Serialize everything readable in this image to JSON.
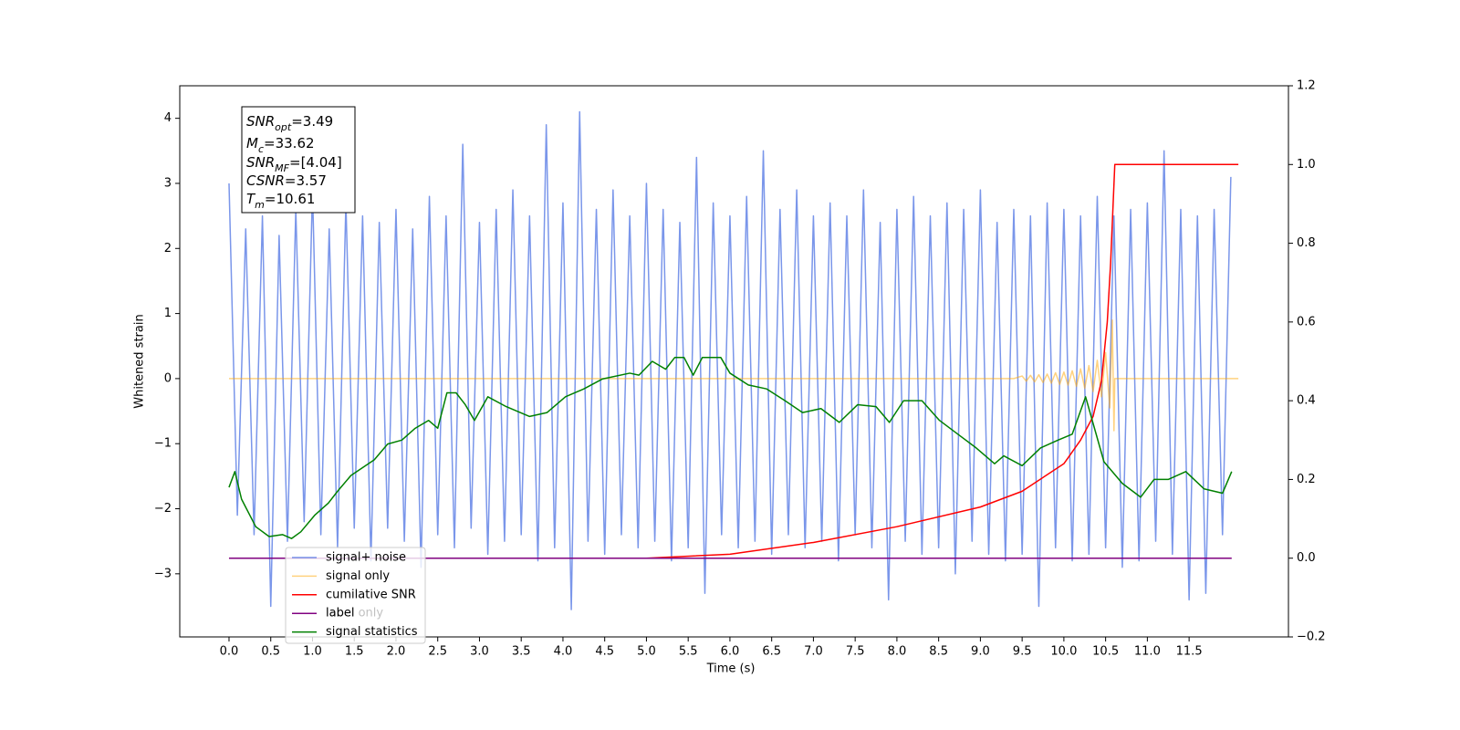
{
  "chart_data": {
    "type": "line",
    "xlabel": "Time (s)",
    "ylabel": "Whitened strain",
    "xlim": [
      -0.59,
      12.69
    ],
    "ylim": [
      -3.97,
      4.5
    ],
    "y2lim": [
      -0.2,
      1.2
    ],
    "xticks": [
      {
        "value": 0,
        "label": "0.0"
      },
      {
        "value": 0.5,
        "label": "0.5"
      },
      {
        "value": 1,
        "label": "1.0"
      },
      {
        "value": 1.5,
        "label": "1.5"
      },
      {
        "value": 2,
        "label": "2.0"
      },
      {
        "value": 2.5,
        "label": "2.5"
      },
      {
        "value": 3,
        "label": "3.0"
      },
      {
        "value": 3.5,
        "label": "3.5"
      },
      {
        "value": 4,
        "label": "4.0"
      },
      {
        "value": 4.5,
        "label": "4.5"
      },
      {
        "value": 5,
        "label": "5.0"
      },
      {
        "value": 5.5,
        "label": "5.5"
      },
      {
        "value": 6,
        "label": "6.0"
      },
      {
        "value": 6.5,
        "label": "6.5"
      },
      {
        "value": 7,
        "label": "7.0"
      },
      {
        "value": 7.5,
        "label": "7.5"
      },
      {
        "value": 8,
        "label": "8.0"
      },
      {
        "value": 8.5,
        "label": "8.5"
      },
      {
        "value": 9,
        "label": "9.0"
      },
      {
        "value": 9.5,
        "label": "9.5"
      },
      {
        "value": 10,
        "label": "10.0"
      },
      {
        "value": 10.5,
        "label": "10.5"
      },
      {
        "value": 11,
        "label": "11.0"
      },
      {
        "value": 11.5,
        "label": "11.5"
      }
    ],
    "yticks": [
      {
        "value": -3,
        "label": "−3"
      },
      {
        "value": -2,
        "label": "−2"
      },
      {
        "value": -1,
        "label": "−1"
      },
      0,
      1,
      2,
      3,
      4
    ],
    "y2ticks": [
      {
        "value": -0.2,
        "label": "−0.2"
      },
      {
        "value": 0,
        "label": "0.0"
      },
      0.2,
      0.4,
      0.6,
      0.8,
      {
        "value": 1,
        "label": "1.0"
      },
      1.2
    ],
    "legend": "lower left",
    "legend_ghost": "label only",
    "annotation": [
      {
        "symbol": "SNR",
        "sub": "opt",
        "text": "=3.49"
      },
      {
        "symbol": "M",
        "sub": "c",
        "text": "=33.62"
      },
      {
        "symbol": "SNR",
        "sub": "MF",
        "text": "=[4.04]"
      },
      {
        "symbol": "CSNR",
        "text": "=3.57"
      },
      {
        "symbol": "T",
        "sub": "m",
        "text": "=10.61"
      }
    ],
    "series": [
      {
        "name": "signal+ noise",
        "color": "#4169e1",
        "alpha": 0.7,
        "x": [
          0,
          0.1,
          0.2,
          0.3,
          0.4,
          0.5,
          0.6,
          0.7,
          0.8,
          0.9,
          1,
          1.1,
          1.2,
          1.3,
          1.4,
          1.5,
          1.6,
          1.7,
          1.8,
          1.9,
          2,
          2.1,
          2.2,
          2.3,
          2.4,
          2.5,
          2.6,
          2.7,
          2.8,
          2.9,
          3,
          3.1,
          3.2,
          3.3,
          3.4,
          3.5,
          3.6,
          3.7,
          3.8,
          3.9,
          4,
          4.1,
          4.2,
          4.3,
          4.4,
          4.5,
          4.6,
          4.7,
          4.8,
          4.9,
          5,
          5.1,
          5.2,
          5.3,
          5.4,
          5.5,
          5.6,
          5.7,
          5.8,
          5.9,
          6,
          6.1,
          6.2,
          6.3,
          6.4,
          6.5,
          6.6,
          6.7,
          6.8,
          6.9,
          7,
          7.1,
          7.2,
          7.3,
          7.4,
          7.5,
          7.6,
          7.7,
          7.8,
          7.9,
          8,
          8.1,
          8.2,
          8.3,
          8.4,
          8.5,
          8.6,
          8.7,
          8.8,
          8.9,
          9,
          9.1,
          9.2,
          9.3,
          9.4,
          9.5,
          9.6,
          9.7,
          9.8,
          9.9,
          10,
          10.1,
          10.2,
          10.3,
          10.4,
          10.5,
          10.6,
          10.7,
          10.8,
          10.9,
          11,
          11.1,
          11.2,
          11.3,
          11.4,
          11.5,
          11.6,
          11.7,
          11.8,
          11.9,
          12
        ],
        "values": [
          3.0,
          -2.1,
          2.3,
          -2.4,
          2.5,
          -3.5,
          2.2,
          -2.5,
          2.6,
          -2.2,
          2.9,
          -2.4,
          2.3,
          -2.6,
          2.7,
          -2.3,
          2.5,
          -2.8,
          2.4,
          -2.3,
          2.6,
          -2.5,
          2.3,
          -2.9,
          2.8,
          -2.4,
          2.5,
          -2.6,
          3.6,
          -2.3,
          2.4,
          -2.7,
          2.6,
          -2.5,
          2.9,
          -2.4,
          2.5,
          -2.8,
          3.9,
          -2.6,
          2.7,
          -3.55,
          4.1,
          -2.5,
          2.6,
          -2.7,
          2.9,
          -2.4,
          2.5,
          -2.6,
          3.0,
          -2.5,
          2.6,
          -2.8,
          2.4,
          -2.6,
          3.4,
          -3.3,
          2.7,
          -2.4,
          2.5,
          -2.6,
          2.8,
          -2.5,
          3.5,
          -2.7,
          2.6,
          -2.4,
          2.9,
          -2.6,
          2.5,
          -2.5,
          2.7,
          -2.8,
          2.5,
          -2.4,
          2.9,
          -2.6,
          2.4,
          -3.4,
          2.6,
          -2.5,
          2.8,
          -2.7,
          2.5,
          -2.6,
          2.7,
          -3.0,
          2.6,
          -2.5,
          2.9,
          -2.7,
          2.4,
          -2.8,
          2.6,
          -2.7,
          2.5,
          -3.5,
          2.7,
          -2.6,
          2.6,
          -2.8,
          2.5,
          -2.7,
          2.8,
          -2.6,
          2.5,
          -2.9,
          2.6,
          -2.8,
          2.7,
          -2.5,
          3.5,
          -2.7,
          2.6,
          -3.4,
          2.5,
          -3.3,
          2.6,
          -2.4,
          3.1
        ]
      },
      {
        "name": "signal only",
        "color": "#ffa500",
        "alpha": 0.5,
        "x": [
          0,
          9.4,
          9.5,
          9.55,
          9.6,
          9.65,
          9.7,
          9.75,
          9.8,
          9.85,
          9.9,
          9.95,
          10,
          10.05,
          10.1,
          10.15,
          10.2,
          10.25,
          10.3,
          10.35,
          10.4,
          10.45,
          10.5,
          10.55,
          10.58,
          10.6,
          10.61,
          12.09
        ],
        "values": [
          0,
          0,
          0.04,
          -0.04,
          0.05,
          -0.05,
          0.06,
          -0.06,
          0.07,
          -0.07,
          0.09,
          -0.09,
          0.1,
          -0.1,
          0.12,
          -0.12,
          0.15,
          -0.15,
          0.2,
          -0.2,
          0.28,
          -0.28,
          0.4,
          -0.45,
          0.9,
          -0.8,
          0,
          0
        ]
      },
      {
        "name": "cumilative SNR",
        "color": "#ff0000",
        "alpha": 1,
        "axis": "y2",
        "x": [
          0,
          5,
          6,
          7,
          8,
          9,
          9.5,
          10,
          10.2,
          10.35,
          10.45,
          10.52,
          10.56,
          10.6,
          10.61,
          12.09
        ],
        "values": [
          0,
          0,
          0.01,
          0.04,
          0.08,
          0.13,
          0.17,
          0.24,
          0.3,
          0.36,
          0.45,
          0.6,
          0.75,
          0.95,
          1,
          1
        ]
      },
      {
        "name": "label",
        "color": "#800080",
        "alpha": 1,
        "axis": "y2",
        "x": [
          0,
          12.01
        ],
        "values": [
          0,
          0
        ]
      },
      {
        "name": "signal statistics",
        "color": "#008000",
        "alpha": 1,
        "axis": "y2",
        "x": [
          0,
          0.07,
          0.15,
          0.32,
          0.48,
          0.64,
          0.75,
          0.86,
          1.03,
          1.19,
          1.3,
          1.46,
          1.74,
          1.9,
          2.07,
          2.23,
          2.39,
          2.5,
          2.61,
          2.72,
          2.83,
          2.94,
          3.1,
          3.32,
          3.6,
          3.81,
          4.03,
          4.25,
          4.47,
          4.8,
          4.91,
          5.07,
          5.23,
          5.34,
          5.45,
          5.56,
          5.67,
          5.89,
          6,
          6.22,
          6.44,
          6.66,
          6.87,
          7.09,
          7.31,
          7.53,
          7.75,
          7.91,
          8.08,
          8.3,
          8.51,
          8.73,
          8.95,
          9.17,
          9.28,
          9.5,
          9.72,
          9.93,
          10.1,
          10.26,
          10.48,
          10.7,
          10.92,
          11.08,
          11.25,
          11.46,
          11.68,
          11.9,
          12.01
        ],
        "values": [
          0.18,
          0.22,
          0.15,
          0.08,
          0.055,
          0.06,
          0.05,
          0.067,
          0.11,
          0.14,
          0.17,
          0.21,
          0.25,
          0.29,
          0.3,
          0.33,
          0.35,
          0.33,
          0.42,
          0.42,
          0.39,
          0.35,
          0.41,
          0.385,
          0.36,
          0.37,
          0.41,
          0.43,
          0.455,
          0.47,
          0.465,
          0.5,
          0.48,
          0.51,
          0.51,
          0.465,
          0.51,
          0.51,
          0.47,
          0.44,
          0.43,
          0.4,
          0.37,
          0.38,
          0.345,
          0.39,
          0.385,
          0.345,
          0.4,
          0.4,
          0.35,
          0.315,
          0.28,
          0.24,
          0.26,
          0.235,
          0.28,
          0.3,
          0.315,
          0.41,
          0.245,
          0.19,
          0.155,
          0.2,
          0.2,
          0.22,
          0.176,
          0.165,
          0.22
        ]
      }
    ]
  }
}
